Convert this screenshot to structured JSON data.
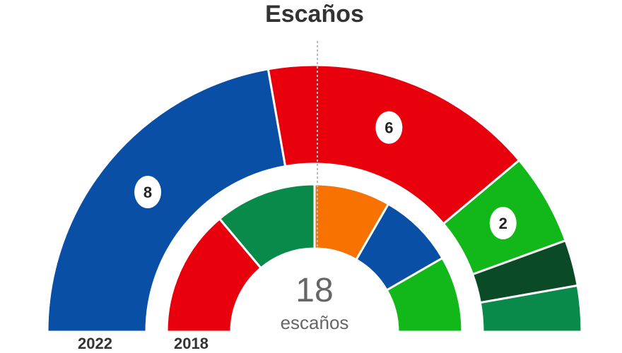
{
  "title": "Escaños",
  "chart_data": {
    "type": "pie",
    "layout": "parliament-half-donut",
    "total_seats": 18,
    "total_label": "escaños",
    "rings": [
      {
        "year": "2022",
        "segments": [
          {
            "seats": 8,
            "label": "8",
            "color": "#0a4fa6"
          },
          {
            "seats": 6,
            "label": "6",
            "color": "#e8000d"
          },
          {
            "seats": 2,
            "label": "2",
            "color": "#12b81a"
          },
          {
            "seats": 1,
            "label": "",
            "color": "#0b4a26"
          },
          {
            "seats": 1,
            "label": "",
            "color": "#0a8a4a"
          }
        ]
      },
      {
        "year": "2018",
        "segments": [
          {
            "seats": 5,
            "label": "",
            "color": "#e8000d"
          },
          {
            "seats": 4,
            "label": "",
            "color": "#0a8a4a"
          },
          {
            "seats": 3,
            "label": "",
            "color": "#f77200"
          },
          {
            "seats": 3,
            "label": "",
            "color": "#0a4fa6"
          },
          {
            "seats": 3,
            "label": "",
            "color": "#12b81a"
          }
        ]
      }
    ]
  }
}
